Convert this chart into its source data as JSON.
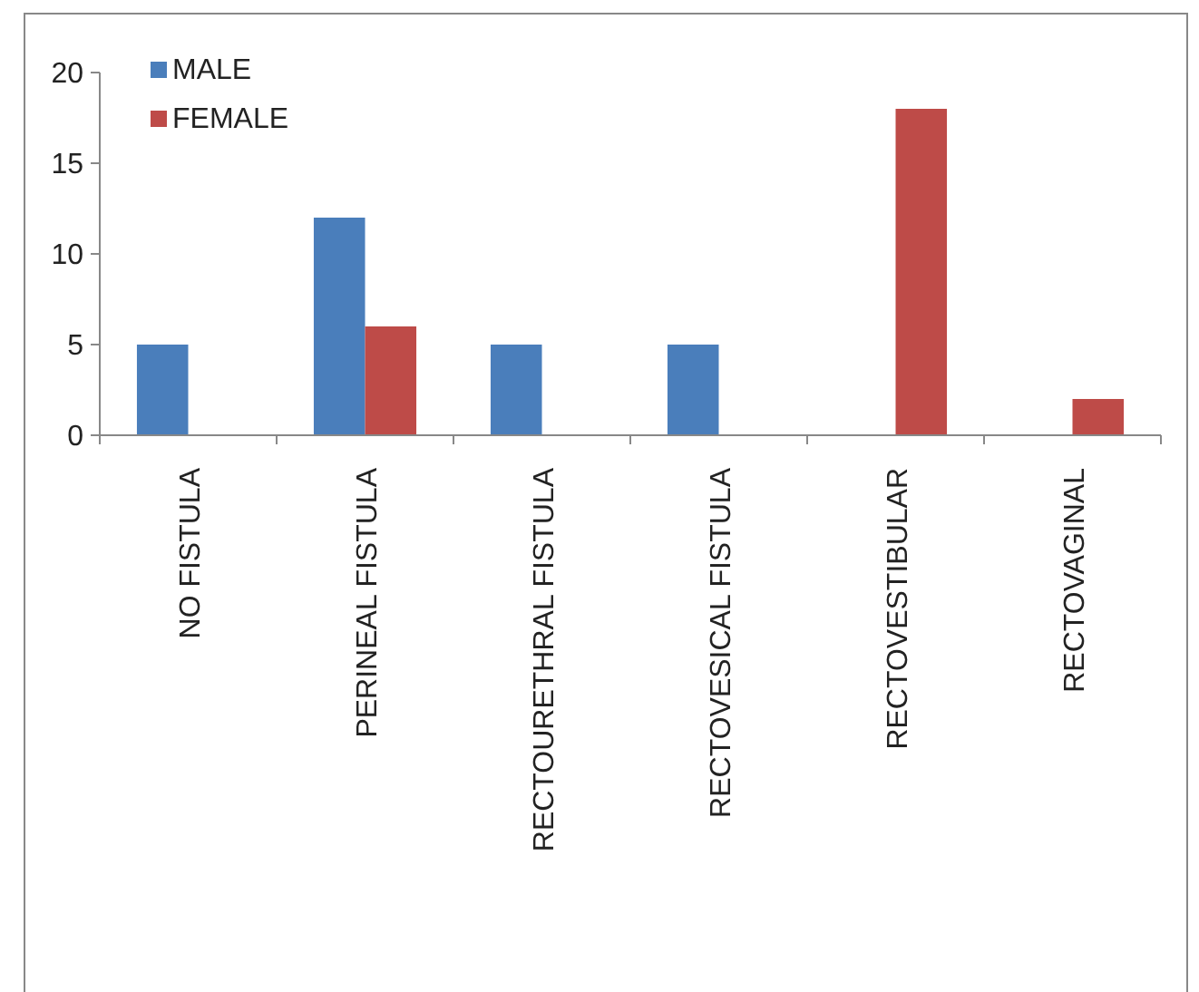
{
  "chart_data": {
    "type": "bar",
    "categories": [
      "NO FISTULA",
      "PERINEAL FISTULA",
      "RECTOURETHRAL FISTULA",
      "RECTOVESICAL FISTULA",
      "RECTOVESTIBULAR",
      "RECTOVAGINAL"
    ],
    "series": [
      {
        "name": "MALE",
        "color": "#4a7ebb",
        "values": [
          5,
          12,
          5,
          5,
          0,
          0
        ]
      },
      {
        "name": "FEMALE",
        "color": "#be4b48",
        "values": [
          0,
          6,
          0,
          0,
          18,
          2
        ]
      }
    ],
    "ylim": [
      0,
      20
    ],
    "yticks": [
      0,
      5,
      10,
      15,
      20
    ],
    "grid": false,
    "legend": "top left"
  }
}
